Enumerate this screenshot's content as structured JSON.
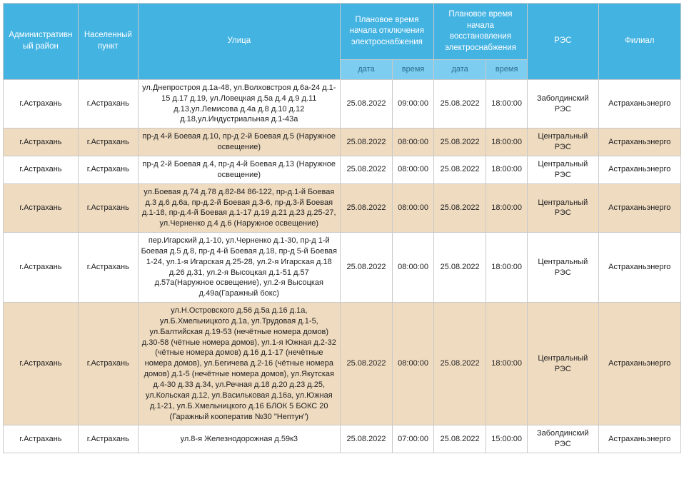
{
  "colors": {
    "header_bg": "#43b3e2",
    "header_text": "#ffffff",
    "subheader_bg": "#7ccdf0",
    "subheader_text": "#2c6f90",
    "row_alt_bg": "#efdbc0",
    "row_bg": "#ffffff",
    "border": "#c9c9c9",
    "cell_text": "#222222"
  },
  "columns": {
    "district": "Административный район",
    "city": "Населенный пункт",
    "street": "Улица",
    "off": "Плановое время начала отключения электроснабжения",
    "on": "Плановое время начала восстановления электроснабжения",
    "res": "РЭС",
    "branch": "Филиал",
    "sub_date": "дата",
    "sub_time": "время"
  },
  "rows": [
    {
      "district": "г.Астрахань",
      "city": "г.Астрахань",
      "street": "ул.Днепростроя д.1а-48, ул.Волховстроя д.6а-24 д.1-15 д.17 д.19, ул.Ловецкая д.5а д.4 д.9 д.11 д.13,ул.Лемисова д.4а д.8 д.10 д.12 д.18,ул.Индустриальная д.1-43а",
      "off_date": "25.08.2022",
      "off_time": "09:00:00",
      "on_date": "25.08.2022",
      "on_time": "18:00:00",
      "res": "Заболдинский РЭС",
      "branch": "Астраханьэнерго"
    },
    {
      "district": "г.Астрахань",
      "city": "г.Астрахань",
      "street": "пр-д 4-й Боевая д.10, пр-д 2-й Боевая д.5 (Наружное освещение)",
      "off_date": "25.08.2022",
      "off_time": "08:00:00",
      "on_date": "25.08.2022",
      "on_time": "18:00:00",
      "res": "Центральный РЭС",
      "branch": "Астраханьэнерго"
    },
    {
      "district": "г.Астрахань",
      "city": "г.Астрахань",
      "street": "пр-д 2-й Боевая д.4, пр-д 4-й Боевая д.13 (Наружное освещение)",
      "off_date": "25.08.2022",
      "off_time": "08:00:00",
      "on_date": "25.08.2022",
      "on_time": "18:00:00",
      "res": "Центральный РЭС",
      "branch": "Астраханьэнерго"
    },
    {
      "district": "г.Астрахань",
      "city": "г.Астрахань",
      "street": "ул.Боевая д.74 д.78 д.82-84 86-122, пр-д.1-й Боевая д.3 д.6 д.6а, пр-д.2-й Боевая д.3-6, пр-д.3-й Боевая д.1-18, пр-д.4-й Боевая д.1-17 д.19 д.21 д.23 д.25-27, ул.Черненко д.4 д.6 (Наружное освещение)",
      "off_date": "25.08.2022",
      "off_time": "08:00:00",
      "on_date": "25.08.2022",
      "on_time": "18:00:00",
      "res": "Центральный РЭС",
      "branch": "Астраханьэнерго"
    },
    {
      "district": "г.Астрахань",
      "city": "г.Астрахань",
      "street": "пер.Игарский д.1-10, ул.Черненко д.1-30, пр-д 1-й Боевая д.5 д.8, пр-д 4-й Боевая д.18, пр-д 5-й Боевая 1-24, ул.1-я Игарская д.25-28, ул.2-я Игарская д.18 д.26 д.31, ул.2-я Высоцкая д.1-51 д.57 д.57а(Наружное освещение), ул.2-я Высоцкая д.49а(Гаражный бокс)",
      "off_date": "25.08.2022",
      "off_time": "08:00:00",
      "on_date": "25.08.2022",
      "on_time": "18:00:00",
      "res": "Центральный РЭС",
      "branch": "Астраханьэнерго"
    },
    {
      "district": "г.Астрахань",
      "city": "г.Астрахань",
      "street": "ул.Н.Островского д.56 д.5а д.16 д.1а, ул.Б.Хмельницкого д.1а, ул.Трудовая д.1-5, ул.Балтийская д.19-53 (нечётные номера домов) д.30-58 (чётные номера домов), ул.1-я Южная д.2-32 (чётные номера домов) д.16 д.1-17 (нечётные номера домов), ул.Бегичева д.2-16 (чётные номера домов) д.1-5 (нечётные номера домов), ул.Якутская д.4-30 д.33 д.34, ул.Речная д.18 д.20 д.23 д.25, ул.Кольская д.12, ул.Васильковая д.16а, ул.Южная д.1-21, ул.Б.Хмельницкого д.16 БЛОК 5 БОКС 20 (Гаражный кооператив №30 \"Нептун\")",
      "off_date": "25.08.2022",
      "off_time": "08:00:00",
      "on_date": "25.08.2022",
      "on_time": "18:00:00",
      "res": "Центральный РЭС",
      "branch": "Астраханьэнерго"
    },
    {
      "district": "г.Астрахань",
      "city": "г.Астрахань",
      "street": "ул.8-я Железнодорожная д.59к3",
      "off_date": "25.08.2022",
      "off_time": "07:00:00",
      "on_date": "25.08.2022",
      "on_time": "15:00:00",
      "res": "Заболдинский РЭС",
      "branch": "Астраханьэнерго"
    }
  ]
}
